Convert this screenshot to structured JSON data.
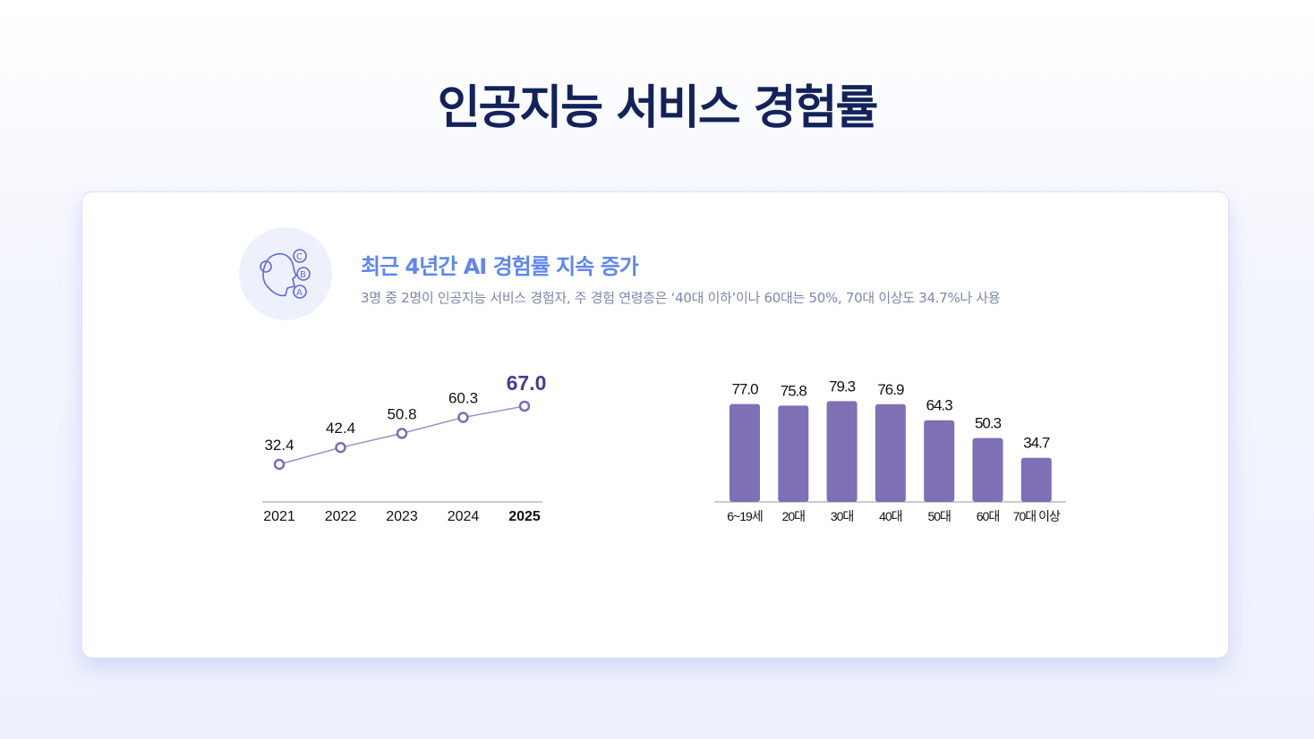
{
  "title": "인공지능 서비스 경험률",
  "card": {
    "heading": "최근 4년간 AI 경험률 지속 증가",
    "description": "3명 중 2명이 인공지능 서비스 경험자, 주 경험 연령층은 ‘40대 이하’이나 60대는 50%, 70대 이상도 34.7%나 사용",
    "icon": "ai-head-abc-icon"
  },
  "chart_data": [
    {
      "type": "line",
      "categories": [
        "2021",
        "2022",
        "2023",
        "2024",
        "2025"
      ],
      "values": [
        32.4,
        42.4,
        50.8,
        60.3,
        67.0
      ],
      "highlight": "2025",
      "color": "#7b6cb4",
      "highlight_color": "#4b3a95"
    },
    {
      "type": "bar",
      "categories": [
        "6~19세",
        "20대",
        "30대",
        "40대",
        "50대",
        "60대",
        "70대 이상"
      ],
      "values": [
        77.0,
        75.8,
        79.3,
        76.9,
        64.3,
        50.3,
        34.7
      ],
      "color": "#7f6fb5"
    }
  ]
}
